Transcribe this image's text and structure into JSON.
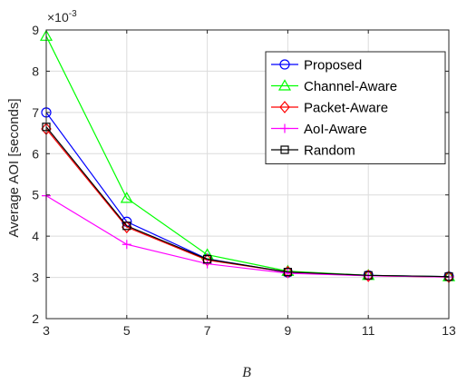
{
  "chart_data": {
    "type": "line",
    "xlabel": "B",
    "ylabel": "Average AOI [seconds]",
    "y_exponent_label": "×10",
    "y_exponent_power": "-3",
    "x": [
      3,
      5,
      7,
      9,
      11,
      13
    ],
    "xticks": [
      "3",
      "5",
      "7",
      "9",
      "11",
      "13"
    ],
    "yticks": [
      "2",
      "3",
      "4",
      "5",
      "6",
      "7",
      "8",
      "9"
    ],
    "xlim": [
      3,
      13
    ],
    "ylim": [
      2,
      9
    ],
    "grid": true,
    "legend_position": "top-right",
    "series": [
      {
        "name": "Proposed",
        "color": "#0000ff",
        "marker": "circle",
        "values": [
          7.0,
          4.35,
          3.45,
          3.12,
          3.05,
          3.02
        ]
      },
      {
        "name": "Channel-Aware",
        "color": "#00ff00",
        "marker": "triangle",
        "values": [
          8.85,
          4.92,
          3.55,
          3.15,
          3.05,
          3.02
        ]
      },
      {
        "name": "Packet-Aware",
        "color": "#ff0000",
        "marker": "diamond",
        "values": [
          6.6,
          4.22,
          3.42,
          3.13,
          3.04,
          3.01
        ]
      },
      {
        "name": "AoI-Aware",
        "color": "#ff00ff",
        "marker": "plus",
        "values": [
          4.98,
          3.8,
          3.33,
          3.1,
          3.04,
          3.01
        ]
      },
      {
        "name": "Random",
        "color": "#000000",
        "marker": "square",
        "values": [
          6.65,
          4.25,
          3.44,
          3.13,
          3.05,
          3.02
        ]
      }
    ]
  }
}
